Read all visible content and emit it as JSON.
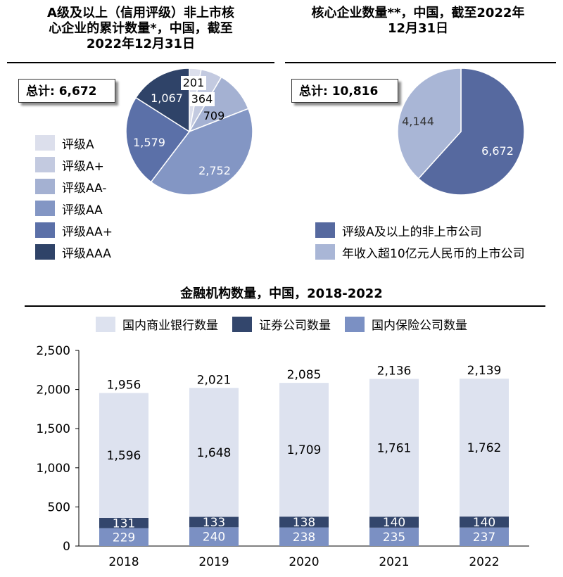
{
  "colors": {
    "rating_a": "#dcdfec",
    "rating_a_plus": "#c3cae0",
    "rating_aa_minus": "#a4b1d2",
    "rating_aa": "#8396c4",
    "rating_aa_plus": "#5b70a8",
    "rating_aaa": "#2f4368",
    "listed": "#a9b6d6",
    "core_rated": "#56699f",
    "banks": "#dde2ef",
    "securities": "#33466c",
    "insurance": "#7b90c3"
  },
  "panel_left": {
    "title_line1": "A级及以上（信用评级）非上市核",
    "title_line2": "心企业的累计数量*，中国，截至",
    "title_line3": "2022年12月31日",
    "total_prefix": "总计: ",
    "total_value": "6,672"
  },
  "panel_right": {
    "title_line1": "核心企业数量**，中国，截至2022年",
    "title_line2": "12月31日",
    "total_prefix": "总计: ",
    "total_value": "10,816"
  },
  "panel_bottom": {
    "title": "金融机构数量，中国，2018-2022"
  },
  "chart_data": [
    {
      "type": "pie",
      "title": "A级及以上（信用评级）非上市核心企业的累计数量*，中国，截至2022年12月31日",
      "total_label": "总计: 6,672",
      "slices": [
        {
          "label": "评级A",
          "value": 201,
          "color": "#dcdfec",
          "value_label": "201"
        },
        {
          "label": "评级A+",
          "value": 364,
          "color": "#c3cae0",
          "value_label": "364"
        },
        {
          "label": "评级AA-",
          "value": 709,
          "color": "#a4b1d2",
          "value_label": "709"
        },
        {
          "label": "评级AA",
          "value": 2752,
          "color": "#8396c4",
          "value_label": "2,752"
        },
        {
          "label": "评级AA+",
          "value": 1579,
          "color": "#5b70a8",
          "value_label": "1,579"
        },
        {
          "label": "评级AAA",
          "value": 1067,
          "color": "#2f4368",
          "value_label": "1,067"
        }
      ],
      "legend_position": "left"
    },
    {
      "type": "pie",
      "title": "核心企业数量**，中国，截至2022年12月31日",
      "total_label": "总计: 10,816",
      "slices": [
        {
          "label": "评级A及以上的非上市公司",
          "value": 6672,
          "color": "#56699f",
          "value_label": "6,672"
        },
        {
          "label": "年收入超10亿元人民币的上市公司",
          "value": 4144,
          "color": "#a9b6d6",
          "value_label": "4,144"
        }
      ],
      "legend_position": "bottom"
    },
    {
      "type": "bar",
      "stacked": true,
      "title": "金融机构数量，中国，2018-2022",
      "categories": [
        "2018",
        "2019",
        "2020",
        "2021",
        "2022"
      ],
      "series": [
        {
          "name": "国内保险公司数量",
          "values": [
            229,
            240,
            238,
            235,
            237
          ],
          "labels": [
            "229",
            "240",
            "238",
            "235",
            "237"
          ],
          "color": "#7b90c3"
        },
        {
          "name": "证券公司数量",
          "values": [
            131,
            133,
            138,
            140,
            140
          ],
          "labels": [
            "131",
            "133",
            "138",
            "140",
            "140"
          ],
          "color": "#33466c"
        },
        {
          "name": "国内商业银行数量",
          "values": [
            1596,
            1648,
            1709,
            1761,
            1762
          ],
          "labels": [
            "1,596",
            "1,648",
            "1,709",
            "1,761",
            "1,762"
          ],
          "color": "#dde2ef"
        }
      ],
      "legend_order": [
        "国内商业银行数量",
        "证券公司数量",
        "国内保险公司数量"
      ],
      "totals": [
        1956,
        2021,
        2085,
        2136,
        2139
      ],
      "total_labels": [
        "1,956",
        "2,021",
        "2,085",
        "2,136",
        "2,139"
      ],
      "ylim": [
        0,
        2500
      ],
      "yticks": [
        0,
        500,
        1000,
        1500,
        2000,
        2500
      ],
      "ytick_labels": [
        "0",
        "500",
        "1,000",
        "1,500",
        "2,000",
        "2,500"
      ],
      "grid": false,
      "legend_position": "top"
    }
  ]
}
